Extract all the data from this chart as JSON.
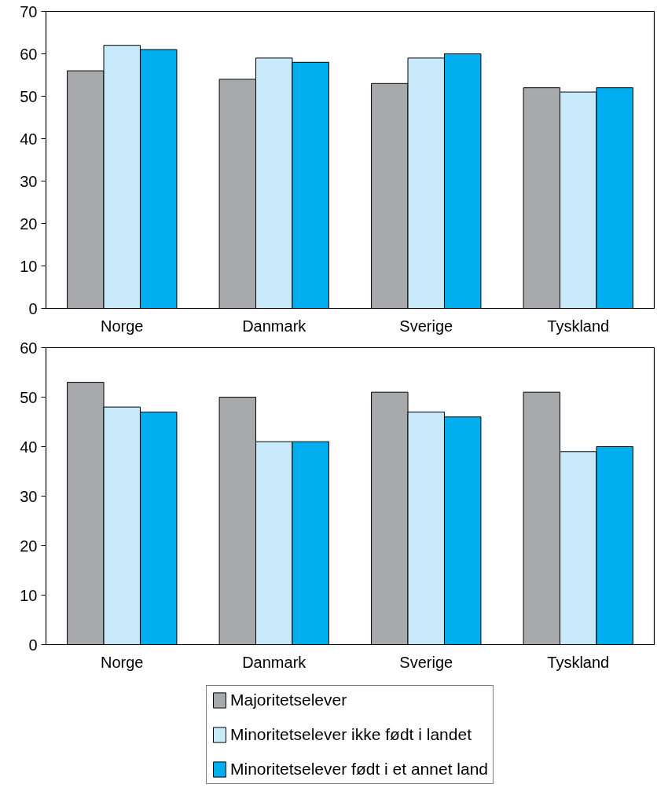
{
  "chart_data": [
    {
      "type": "bar",
      "categories": [
        "Norge",
        "Danmark",
        "Sverige",
        "Tyskland"
      ],
      "series": [
        {
          "color": "#a7a9ac",
          "values": [
            56,
            54,
            53,
            52
          ]
        },
        {
          "color": "#c7e9f9",
          "values": [
            62,
            59,
            59,
            51
          ]
        },
        {
          "color": "#00aeef",
          "values": [
            61,
            58,
            60,
            52
          ]
        }
      ],
      "ylim": [
        0,
        70
      ],
      "yticks": [
        0,
        10,
        20,
        30,
        40,
        50,
        60,
        70
      ],
      "grid": false
    },
    {
      "type": "bar",
      "categories": [
        "Norge",
        "Danmark",
        "Sverige",
        "Tyskland"
      ],
      "series": [
        {
          "name": "Majoritetselever",
          "color": "#a7a9ac",
          "values": [
            53,
            50,
            51,
            51
          ]
        },
        {
          "name": "Minoritetselever ikke født i landet",
          "color": "#c7e9f9",
          "values": [
            48,
            41,
            47,
            39
          ]
        },
        {
          "name": "Minoritetselever født i et annet land",
          "color": "#00aeef",
          "values": [
            47,
            41,
            46,
            40
          ]
        }
      ],
      "ylim": [
        0,
        60
      ],
      "yticks": [
        0,
        10,
        20,
        30,
        40,
        50,
        60
      ],
      "grid": false,
      "legend": "bottom"
    }
  ]
}
